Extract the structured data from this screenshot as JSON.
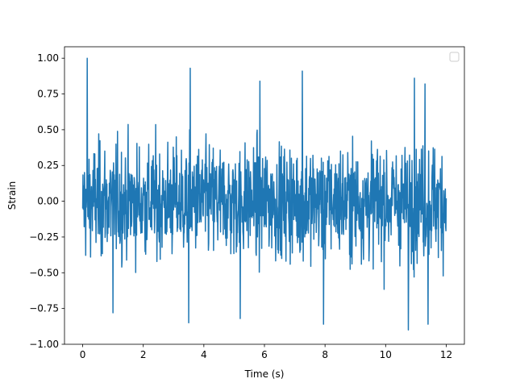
{
  "chart_data": {
    "type": "line",
    "title": "",
    "xlabel": "Time (s)",
    "ylabel": "Strain",
    "xlim": [
      -0.6,
      12.6
    ],
    "ylim": [
      -1.0,
      1.08
    ],
    "xticks": [
      0,
      2,
      4,
      6,
      8,
      10,
      12
    ],
    "yticks": [
      -1.0,
      -0.75,
      -0.5,
      -0.25,
      0.0,
      0.25,
      0.5,
      0.75,
      1.0
    ],
    "xtick_labels": [
      "0",
      "2",
      "4",
      "6",
      "8",
      "10",
      "12"
    ],
    "ytick_labels": [
      "−1.00",
      "−0.75",
      "−0.50",
      "−0.25",
      "0.00",
      "0.25",
      "0.50",
      "0.75",
      "1.00"
    ],
    "grid": false,
    "legend": {
      "placement": "upper-right",
      "entries": []
    },
    "series": [
      {
        "color": "#1f77b4",
        "x_range": [
          0,
          12
        ],
        "sample_count": 1200,
        "typical_envelope": [
          -0.5,
          0.5
        ],
        "peaks": [
          {
            "x": 0.15,
            "y": 1.0
          },
          {
            "x": 3.55,
            "y": 0.93
          },
          {
            "x": 5.85,
            "y": 0.84
          },
          {
            "x": 7.25,
            "y": 0.91
          },
          {
            "x": 10.95,
            "y": 0.86
          },
          {
            "x": 11.3,
            "y": 0.82
          },
          {
            "x": 3.5,
            "y": -0.85
          },
          {
            "x": 7.95,
            "y": -0.86
          },
          {
            "x": 10.75,
            "y": -0.9
          },
          {
            "x": 11.4,
            "y": -0.86
          },
          {
            "x": 1.0,
            "y": -0.78
          },
          {
            "x": 5.2,
            "y": -0.82
          }
        ]
      }
    ]
  }
}
